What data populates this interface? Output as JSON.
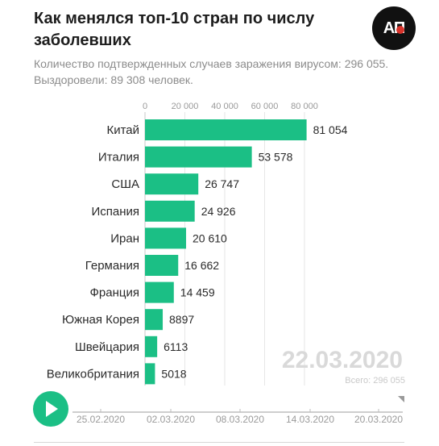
{
  "logo": {
    "text": "АП"
  },
  "chart_data": {
    "type": "bar",
    "orientation": "horizontal",
    "title": "Как менялся топ-10 стран по числу заболевших",
    "subtitle": "Количество подтвержденных случаев заражения вирусом: 296 055. Выздоровели: 89 308 человек.",
    "categories": [
      "Китай",
      "Италия",
      "США",
      "Испания",
      "Иран",
      "Германия",
      "Франция",
      "Южная Корея",
      "Швейцария",
      "Великобритания"
    ],
    "values": [
      81054,
      53578,
      26747,
      24926,
      20610,
      16662,
      14459,
      8897,
      6113,
      5018
    ],
    "value_labels": [
      "81 054",
      "53 578",
      "26 747",
      "24 926",
      "20 610",
      "16 662",
      "14 459",
      "8897",
      "6113",
      "5018"
    ],
    "x_ticks": [
      0,
      20000,
      40000,
      60000,
      80000
    ],
    "x_tick_labels": [
      "0",
      "20 000",
      "40 000",
      "60 000",
      "80 000"
    ],
    "xlim": [
      0,
      80000
    ],
    "grid": true,
    "bar_color": "#1bbf85",
    "date": "22.03.2020",
    "total_label": "Всего: 296 055",
    "timeline": {
      "ticks": [
        "25.02.2020",
        "02.03.2020",
        "08.03.2020",
        "14.03.2020",
        "20.03.2020"
      ],
      "progress": 1.0,
      "play_button_color": "#1bbf85"
    }
  }
}
